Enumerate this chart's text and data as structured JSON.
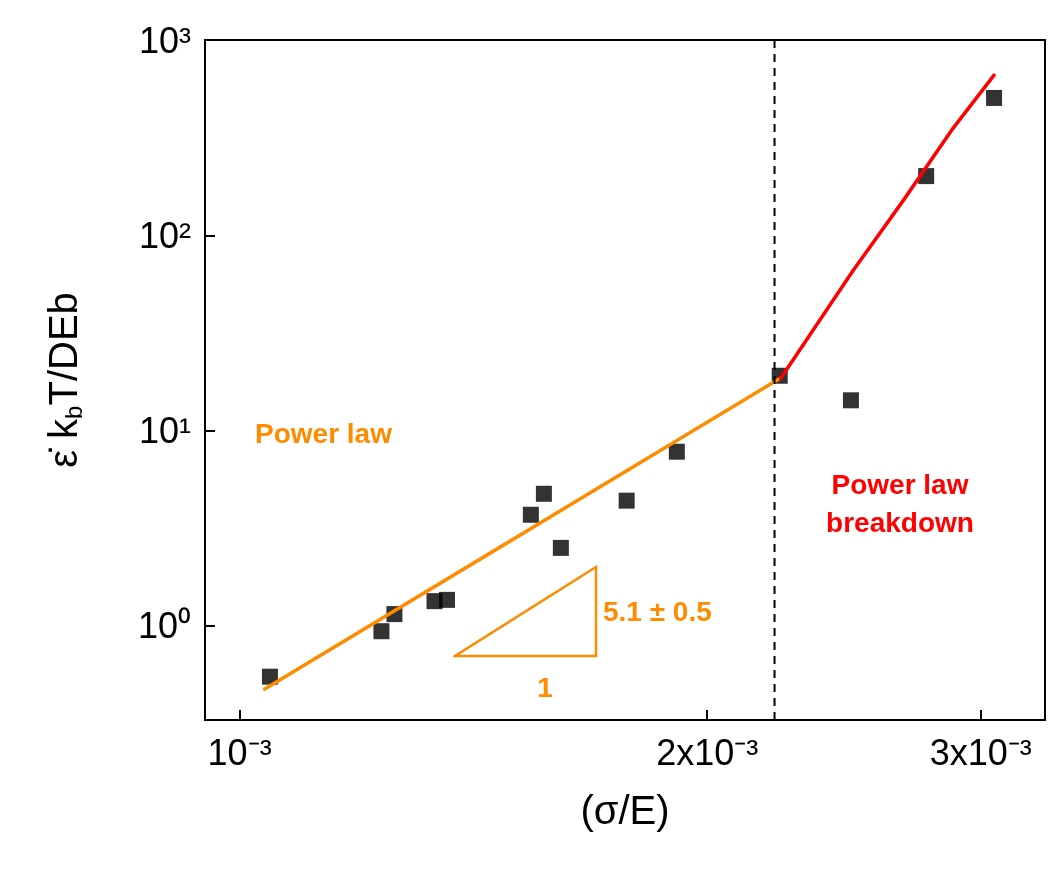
{
  "chart_data": {
    "type": "scatter",
    "xlabel": "(σ/E)",
    "ylabel": "ε̇ k$_{b}$T/DEb",
    "log": "xy",
    "grid": false,
    "marker": "square",
    "xlim": [
      0.00095,
      0.0033
    ],
    "ylim": [
      0.33,
      1000
    ],
    "xticks": [
      {
        "value": 0.001,
        "label": "10⁻³"
      },
      {
        "value": 0.002,
        "label": "2x10⁻³"
      },
      {
        "value": 0.003,
        "label": "3x10⁻³"
      }
    ],
    "yticks": [
      {
        "value": 1,
        "label": "10⁰"
      },
      {
        "value": 10,
        "label": "10¹"
      },
      {
        "value": 100,
        "label": "10²"
      },
      {
        "value": 1000,
        "label": "10³"
      }
    ],
    "series": [
      {
        "color": "#000000",
        "x": [
          0.001046,
          0.001234,
          0.001258,
          0.001335,
          0.00136,
          0.00154,
          0.00157,
          0.00161,
          0.001775,
          0.001912,
          0.002227,
          0.002475,
          0.002767,
          0.00306
        ],
        "values": [
          0.55,
          0.94,
          1.15,
          1.34,
          1.36,
          3.71,
          4.75,
          2.51,
          4.38,
          7.8,
          19.1,
          14.3,
          201,
          505
        ]
      },
      {
        "type": "line",
        "color": "#ff8c00",
        "marker": "none",
        "line_style": "solid",
        "x": [
          0.001038,
          0.002227
        ],
        "values": [
          0.475,
          18.5
        ]
      },
      {
        "type": "line",
        "color": "#ff0000",
        "marker": "none",
        "line_style": "solid",
        "x": [
          0.00223,
          0.002483,
          0.002675,
          0.00288,
          0.00306
        ],
        "values": [
          18.5,
          66,
          151,
          354,
          661
        ]
      }
    ],
    "ref_lines": [
      {
        "axis": "x",
        "value": 0.00221,
        "color": "#000000",
        "line_style": "dashed"
      }
    ],
    "annotations": [
      "Power law",
      "Power law breakdown",
      "5.1 ± 0.5",
      "1"
    ]
  }
}
